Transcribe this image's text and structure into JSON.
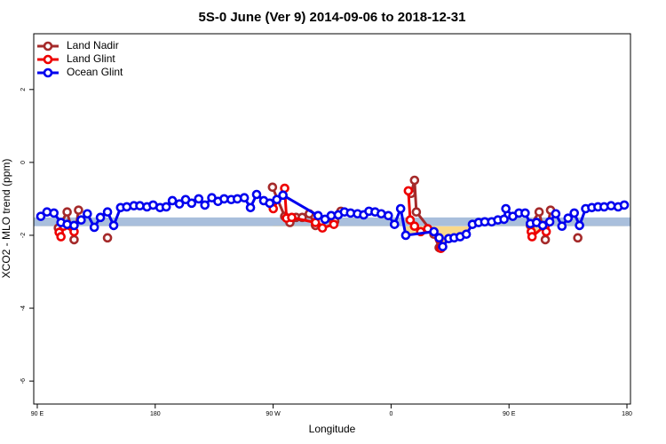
{
  "chart_data": {
    "type": "line",
    "title": "5S-0 June (Ver 9)   2014-09-06 to 2018-12-31",
    "x_label": "Longitude",
    "y_label": "XCO2 - MLO trend (ppm)",
    "xlim": [
      87.3,
      542.7
    ],
    "ylim": [
      -6.63,
      3.53
    ],
    "xticks": [
      {
        "value": 90,
        "label": "90 E"
      },
      180,
      {
        "value": 270,
        "label": "90 W"
      },
      {
        "value": 360,
        "label": "0"
      },
      {
        "value": 450,
        "label": "90 E"
      },
      {
        "value": 540,
        "label": "180"
      }
    ],
    "yticks": [
      2,
      0,
      -2,
      -4,
      -6
    ],
    "band": {
      "lower": -1.75,
      "upper": -1.51,
      "color": "#a9bfdc",
      "below_color": "#f9d98a"
    },
    "legend": "top-left",
    "series": [
      {
        "name": "Land Nadir",
        "color": "#a52a2a",
        "x": [
          106.1,
          112.8,
          118.1,
          121.5,
          null,
          143.6,
          null,
          269.5,
          278.8,
          282.8,
          287.5,
          292.2,
          297.6,
          302.3,
          307.0,
          317.0,
          321.7,
          null,
          375.3,
          377.9,
          379.3,
          392.7,
          396.7,
          null,
          466.3,
          473.0,
          477.7,
          481.7,
          null,
          502.5
        ],
        "values": [
          -1.8,
          -1.36,
          -2.12,
          -1.31,
          null,
          -2.07,
          null,
          -0.68,
          -1.48,
          -1.65,
          -1.51,
          -1.51,
          -1.41,
          -1.73,
          -1.61,
          -1.61,
          -1.34,
          null,
          -0.85,
          -0.49,
          -1.36,
          -1.97,
          -2.34,
          null,
          -1.73,
          -1.36,
          -2.12,
          -1.31,
          null,
          -2.07
        ]
      },
      {
        "name": "Land Glint",
        "color": "#ee0000",
        "x": [
          106.7,
          108.1,
          110.1,
          118.1,
          null,
          270.1,
          278.8,
          280.2,
          284.2,
          302.3,
          307.6,
          316.3,
          null,
          373.2,
          374.6,
          377.9,
          382.6,
          388.0,
          396.7,
          398.0,
          null,
          467.0,
          467.6,
          477.7,
          478.4
        ],
        "values": [
          -1.92,
          -2.04,
          -1.75,
          -1.9,
          null,
          -1.27,
          -0.71,
          -1.53,
          -1.51,
          -1.65,
          -1.8,
          -1.7,
          null,
          -0.78,
          -1.58,
          -1.75,
          -1.9,
          -1.82,
          -2.09,
          -2.36,
          null,
          -1.9,
          -2.04,
          -1.73,
          -1.9
        ]
      },
      {
        "name": "Ocean Glint",
        "color": "#0000ee",
        "x": [
          92.7,
          97.4,
          102.7,
          108.1,
          112.8,
          118.1,
          123.5,
          128.2,
          133.5,
          138.2,
          143.6,
          148.3,
          153.6,
          158.3,
          163.7,
          168.3,
          173.7,
          178.4,
          183.7,
          188.4,
          193.1,
          198.5,
          203.2,
          207.8,
          213.2,
          217.9,
          223.2,
          227.9,
          232.6,
          238.0,
          242.7,
          248.0,
          252.7,
          257.4,
          262.8,
          267.4,
          272.8,
          277.5,
          304.3,
          309.6,
          314.3,
          319.7,
          324.4,
          329.1,
          334.4,
          339.1,
          343.1,
          347.8,
          352.5,
          357.9,
          362.6,
          367.3,
          371.2,
          392.7,
          396.7,
          399.4,
          404.0,
          408.1,
          412.7,
          417.4,
          422.1,
          426.8,
          431.5,
          436.8,
          441.5,
          446.2,
          447.6,
          452.9,
          457.6,
          462.3,
          466.3,
          471.0,
          475.7,
          481.1,
          485.7,
          490.4,
          495.1,
          499.8,
          503.8,
          508.5,
          513.2,
          517.9,
          522.6,
          527.9,
          533.3,
          538.0
        ],
        "values": [
          -1.48,
          -1.36,
          -1.39,
          -1.65,
          -1.7,
          -1.73,
          -1.58,
          -1.41,
          -1.78,
          -1.51,
          -1.36,
          -1.73,
          -1.24,
          -1.22,
          -1.19,
          -1.19,
          -1.22,
          -1.17,
          -1.24,
          -1.22,
          -1.05,
          -1.14,
          -1.02,
          -1.12,
          -1.0,
          -1.17,
          -0.97,
          -1.07,
          -1.0,
          -1.02,
          -1.0,
          -0.97,
          -1.24,
          -0.88,
          -1.05,
          -1.12,
          -1.02,
          -0.9,
          -1.46,
          -1.56,
          -1.46,
          -1.44,
          -1.36,
          -1.39,
          -1.41,
          -1.44,
          -1.34,
          -1.36,
          -1.41,
          -1.46,
          -1.7,
          -1.27,
          -2.0,
          -1.9,
          -2.07,
          -2.31,
          -2.09,
          -2.07,
          -2.04,
          -1.97,
          -1.7,
          -1.65,
          -1.63,
          -1.63,
          -1.58,
          -1.56,
          -1.27,
          -1.48,
          -1.39,
          -1.39,
          -1.68,
          -1.65,
          -1.73,
          -1.63,
          -1.41,
          -1.75,
          -1.53,
          -1.39,
          -1.73,
          -1.27,
          -1.24,
          -1.22,
          -1.22,
          -1.19,
          -1.22,
          -1.17
        ]
      }
    ]
  }
}
